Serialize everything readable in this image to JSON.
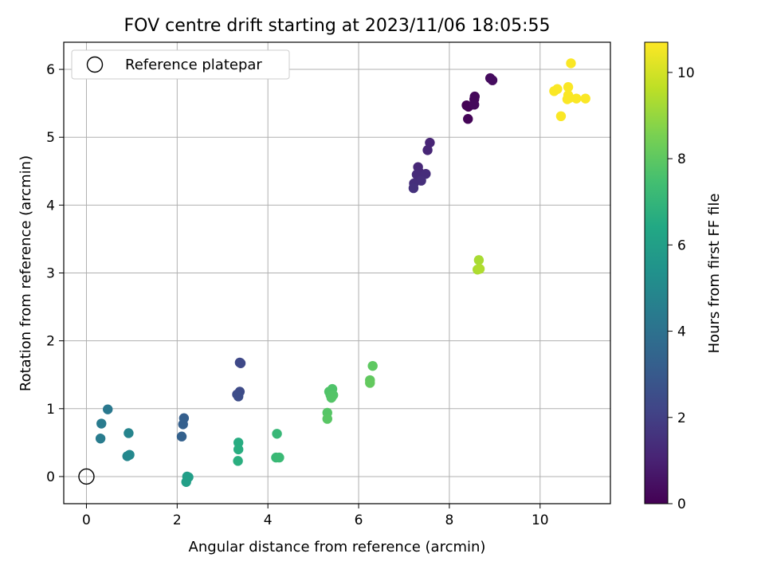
{
  "chart_data": {
    "type": "scatter",
    "title": "FOV centre drift starting at 2023/11/06 18:05:55",
    "xlabel": "Angular distance from reference (arcmin)",
    "ylabel": "Rotation from reference (arcmin)",
    "xlim": [
      -0.5,
      11.55
    ],
    "ylim": [
      -0.4,
      6.4
    ],
    "xticks": [
      "0",
      "2",
      "4",
      "6",
      "8",
      "10"
    ],
    "yticks": [
      "0",
      "1",
      "2",
      "3",
      "4",
      "5",
      "6"
    ],
    "grid": true,
    "legend": {
      "placement": "top-left",
      "entries": [
        "Reference platepar"
      ]
    },
    "reference_point": {
      "x": 0,
      "y": 0
    },
    "colorbar": {
      "label": "Hours from first FF file",
      "min": 0,
      "max": 10.7,
      "ticks": [
        "0",
        "2",
        "4",
        "6",
        "8",
        "10"
      ],
      "colormap": "viridis"
    },
    "points": [
      {
        "x": 8.38,
        "y": 5.47,
        "h": 0.0
      },
      {
        "x": 8.42,
        "y": 5.45,
        "h": 0.05
      },
      {
        "x": 8.41,
        "y": 5.27,
        "h": 0.1
      },
      {
        "x": 8.55,
        "y": 5.56,
        "h": 0.15
      },
      {
        "x": 8.56,
        "y": 5.6,
        "h": 0.2
      },
      {
        "x": 8.55,
        "y": 5.48,
        "h": 0.25
      },
      {
        "x": 8.9,
        "y": 5.87,
        "h": 0.3
      },
      {
        "x": 8.95,
        "y": 5.84,
        "h": 0.35
      },
      {
        "x": 7.57,
        "y": 4.92,
        "h": 1.1
      },
      {
        "x": 7.52,
        "y": 4.81,
        "h": 1.15
      },
      {
        "x": 7.31,
        "y": 4.56,
        "h": 1.2
      },
      {
        "x": 7.33,
        "y": 4.49,
        "h": 1.25
      },
      {
        "x": 7.28,
        "y": 4.45,
        "h": 1.3
      },
      {
        "x": 7.48,
        "y": 4.46,
        "h": 1.35
      },
      {
        "x": 7.22,
        "y": 4.32,
        "h": 1.4
      },
      {
        "x": 7.38,
        "y": 4.36,
        "h": 1.45
      },
      {
        "x": 7.21,
        "y": 4.25,
        "h": 1.5
      },
      {
        "x": 3.38,
        "y": 1.68,
        "h": 2.3
      },
      {
        "x": 3.4,
        "y": 1.67,
        "h": 2.35
      },
      {
        "x": 3.38,
        "y": 1.25,
        "h": 2.4
      },
      {
        "x": 3.32,
        "y": 1.21,
        "h": 2.45
      },
      {
        "x": 3.35,
        "y": 1.18,
        "h": 2.5
      },
      {
        "x": 2.15,
        "y": 0.86,
        "h": 3.2
      },
      {
        "x": 2.13,
        "y": 0.77,
        "h": 3.25
      },
      {
        "x": 2.1,
        "y": 0.59,
        "h": 3.3
      },
      {
        "x": 0.47,
        "y": 0.99,
        "h": 4.3
      },
      {
        "x": 0.33,
        "y": 0.78,
        "h": 4.4
      },
      {
        "x": 0.31,
        "y": 0.56,
        "h": 4.45
      },
      {
        "x": 0.93,
        "y": 0.64,
        "h": 4.8
      },
      {
        "x": 0.9,
        "y": 0.3,
        "h": 4.9
      },
      {
        "x": 0.95,
        "y": 0.32,
        "h": 4.95
      },
      {
        "x": 2.22,
        "y": 0.0,
        "h": 5.9
      },
      {
        "x": 2.25,
        "y": -0.01,
        "h": 5.95
      },
      {
        "x": 2.2,
        "y": -0.08,
        "h": 6.0
      },
      {
        "x": 3.35,
        "y": 0.5,
        "h": 6.6
      },
      {
        "x": 3.35,
        "y": 0.4,
        "h": 6.65
      },
      {
        "x": 3.34,
        "y": 0.23,
        "h": 6.7
      },
      {
        "x": 4.2,
        "y": 0.63,
        "h": 7.1
      },
      {
        "x": 4.18,
        "y": 0.28,
        "h": 7.15
      },
      {
        "x": 4.25,
        "y": 0.28,
        "h": 7.2
      },
      {
        "x": 5.42,
        "y": 1.29,
        "h": 7.7
      },
      {
        "x": 5.35,
        "y": 1.25,
        "h": 7.72
      },
      {
        "x": 5.38,
        "y": 1.2,
        "h": 7.75
      },
      {
        "x": 5.44,
        "y": 1.2,
        "h": 7.78
      },
      {
        "x": 5.4,
        "y": 1.16,
        "h": 7.8
      },
      {
        "x": 5.31,
        "y": 0.94,
        "h": 7.85
      },
      {
        "x": 5.31,
        "y": 0.85,
        "h": 7.9
      },
      {
        "x": 6.31,
        "y": 1.63,
        "h": 8.0
      },
      {
        "x": 6.25,
        "y": 1.42,
        "h": 8.05
      },
      {
        "x": 6.25,
        "y": 1.38,
        "h": 8.1
      },
      {
        "x": 8.65,
        "y": 3.19,
        "h": 9.3
      },
      {
        "x": 8.62,
        "y": 3.05,
        "h": 9.35
      },
      {
        "x": 8.67,
        "y": 3.06,
        "h": 9.4
      },
      {
        "x": 10.68,
        "y": 6.09,
        "h": 10.65
      },
      {
        "x": 10.62,
        "y": 5.74,
        "h": 10.65
      },
      {
        "x": 10.38,
        "y": 5.71,
        "h": 10.65
      },
      {
        "x": 10.31,
        "y": 5.68,
        "h": 10.65
      },
      {
        "x": 10.62,
        "y": 5.62,
        "h": 10.65
      },
      {
        "x": 10.65,
        "y": 5.58,
        "h": 10.65
      },
      {
        "x": 10.6,
        "y": 5.56,
        "h": 10.65
      },
      {
        "x": 10.8,
        "y": 5.57,
        "h": 10.65
      },
      {
        "x": 11.0,
        "y": 5.57,
        "h": 10.65
      },
      {
        "x": 10.46,
        "y": 5.31,
        "h": 10.65
      }
    ]
  }
}
